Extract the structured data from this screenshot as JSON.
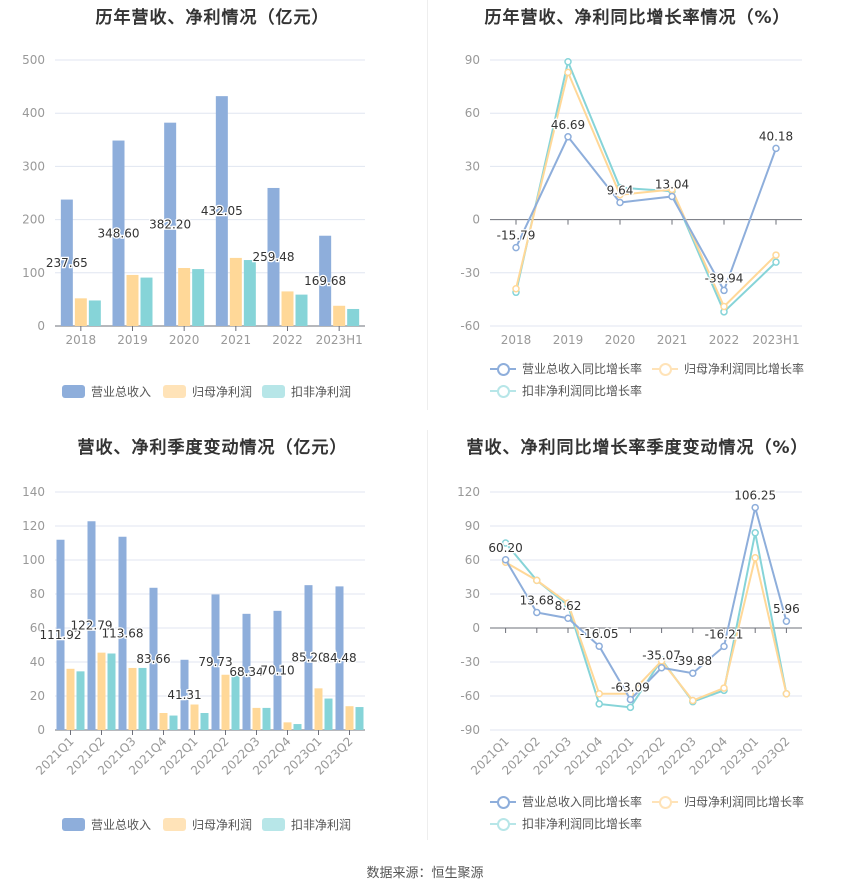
{
  "source": "数据来源：恒生聚源",
  "colors": {
    "revenue": "#8eaedb",
    "net": "#ffd898",
    "deducted": "#86d4d8"
  },
  "chart_data": [
    {
      "type": "bar",
      "title": "历年营收、净利情况（亿元）",
      "categories": [
        "2018",
        "2019",
        "2020",
        "2021",
        "2022",
        "2023H1"
      ],
      "ylim": [
        0,
        500
      ],
      "yticks": [
        0,
        100,
        200,
        300,
        400,
        500
      ],
      "series": [
        {
          "name": "营业总收入",
          "values": [
            237.65,
            348.6,
            382.2,
            432.05,
            259.48,
            169.68
          ],
          "labels": [
            "237.65",
            "348.60",
            "382.20",
            "432.05",
            "259.48",
            "169.68"
          ]
        },
        {
          "name": "归母净利润",
          "values": [
            52,
            96,
            109,
            128,
            65,
            38
          ]
        },
        {
          "name": "扣非净利润",
          "values": [
            48,
            91,
            107,
            124,
            59,
            32
          ]
        }
      ]
    },
    {
      "type": "line",
      "title": "历年营收、净利同比增长率情况（%）",
      "categories": [
        "2018",
        "2019",
        "2020",
        "2021",
        "2022",
        "2023H1"
      ],
      "ylim": [
        -60,
        90
      ],
      "yticks": [
        -60,
        -30,
        0,
        30,
        60,
        90
      ],
      "series": [
        {
          "name": "营业总收入同比增长率",
          "values": [
            -15.79,
            46.69,
            9.64,
            13.04,
            -39.94,
            40.18
          ],
          "labels": [
            "-15.79",
            "46.69",
            "9.64",
            "13.04",
            "-39.94",
            "40.18"
          ]
        },
        {
          "name": "归母净利润同比增长率",
          "values": [
            -39,
            83,
            14,
            17,
            -49,
            -20
          ]
        },
        {
          "name": "扣非净利润同比增长率",
          "values": [
            -41,
            89,
            18,
            16,
            -52,
            -24
          ]
        }
      ]
    },
    {
      "type": "bar",
      "title": "营收、净利季度变动情况（亿元）",
      "categories": [
        "2021Q1",
        "2021Q2",
        "2021Q3",
        "2021Q4",
        "2022Q1",
        "2022Q2",
        "2022Q3",
        "2022Q4",
        "2023Q1",
        "2023Q2"
      ],
      "ylim": [
        0,
        140
      ],
      "yticks": [
        0,
        20,
        40,
        60,
        80,
        100,
        120,
        140
      ],
      "series": [
        {
          "name": "营业总收入",
          "values": [
            111.92,
            122.79,
            113.68,
            83.66,
            41.31,
            79.73,
            68.34,
            70.1,
            85.2,
            84.48
          ],
          "labels": [
            "111.92",
            "122.79",
            "113.68",
            "83.66",
            "41.31",
            "79.73",
            "68.34",
            "70.10",
            "85.20",
            "84.48"
          ]
        },
        {
          "name": "归母净利润",
          "values": [
            36,
            45.5,
            36.5,
            10,
            15,
            32.5,
            13,
            4.5,
            24.5,
            14
          ]
        },
        {
          "name": "扣非净利润",
          "values": [
            34.5,
            45,
            36.5,
            8.5,
            10,
            32,
            13,
            3.5,
            18.5,
            13.5
          ]
        }
      ]
    },
    {
      "type": "line",
      "title": "营收、净利同比增长率季度变动情况（%）",
      "categories": [
        "2021Q1",
        "2021Q2",
        "2021Q3",
        "2021Q4",
        "2022Q1",
        "2022Q2",
        "2022Q3",
        "2022Q4",
        "2023Q1",
        "2023Q2"
      ],
      "ylim": [
        -90,
        120
      ],
      "yticks": [
        -90,
        -60,
        -30,
        0,
        30,
        60,
        90,
        120
      ],
      "series": [
        {
          "name": "营业总收入同比增长率",
          "values": [
            60.2,
            13.68,
            8.62,
            -16.05,
            -63.09,
            -35.07,
            -39.88,
            -16.21,
            106.25,
            5.96
          ],
          "labels": [
            "60.20",
            "13.68",
            "8.62",
            "-16.05",
            "-63.09",
            "-35.07",
            "-39.88",
            "-16.21",
            "106.25",
            "5.96"
          ]
        },
        {
          "name": "归母净利润同比增长率",
          "values": [
            58,
            42,
            22,
            -58,
            -58,
            -29,
            -64,
            -53,
            62,
            -58
          ]
        },
        {
          "name": "扣非净利润同比增长率",
          "values": [
            75,
            42,
            20,
            -67,
            -70,
            -28,
            -65,
            -55,
            84,
            -58
          ]
        }
      ]
    }
  ]
}
